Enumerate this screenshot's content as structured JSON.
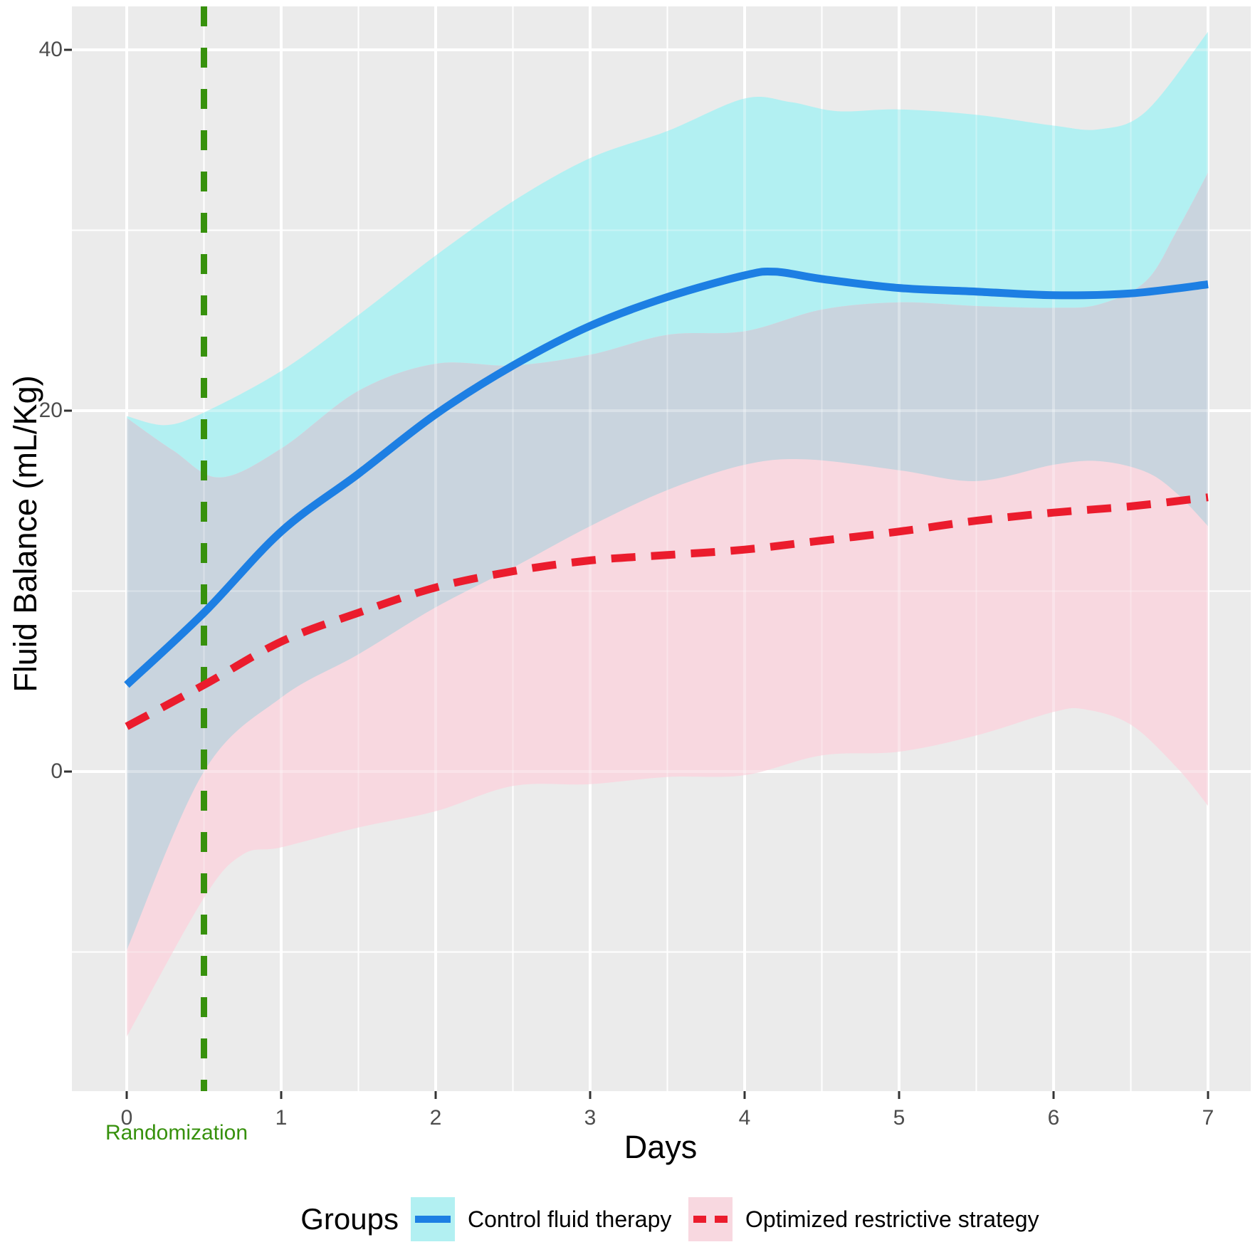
{
  "chart_data": {
    "type": "line",
    "title": "",
    "xlabel": "Days",
    "ylabel": "Fluid Balance (mL/Kg)",
    "x_ticks": [
      0,
      1,
      2,
      3,
      4,
      5,
      6,
      7
    ],
    "x_tick_labels": [
      "0",
      "1",
      "2",
      "3",
      "4",
      "5",
      "6",
      "7"
    ],
    "y_ticks": [
      0,
      20,
      40
    ],
    "y_tick_labels": [
      "0",
      "20",
      "40"
    ],
    "xlim": [
      -0.36,
      7.28
    ],
    "ylim": [
      -17.7,
      42.4
    ],
    "grid": true,
    "panel_bg": "#ebebeb",
    "grid_color": "#ffffff",
    "tick_text_color": "#4d4d4d",
    "overlap_fill": "#c9d4de",
    "annotation": {
      "label": "Randomization",
      "x": 0.5,
      "color": "#37910d",
      "line_style": "dashed"
    },
    "legend": {
      "title": "Groups",
      "position": "bottom",
      "entries": [
        {
          "label": "Control fluid therapy",
          "line_color": "#1d7fe3",
          "line_style": "solid",
          "band_fill": "#b2f0f2"
        },
        {
          "label": "Optimized restrictive strategy",
          "line_color": "#eb1c2d",
          "line_style": "dashed",
          "band_fill": "#f8d8e0"
        }
      ]
    },
    "series": [
      {
        "name": "Control fluid therapy",
        "color": "#1d7fe3",
        "dash": "solid",
        "points": [
          [
            0,
            4.8
          ],
          [
            0.5,
            8.8
          ],
          [
            1,
            13.3
          ],
          [
            1.5,
            16.5
          ],
          [
            2,
            19.8
          ],
          [
            2.5,
            22.5
          ],
          [
            3,
            24.7
          ],
          [
            3.5,
            26.3
          ],
          [
            4,
            27.5
          ],
          [
            4.2,
            27.7
          ],
          [
            4.5,
            27.3
          ],
          [
            5,
            26.8
          ],
          [
            5.5,
            26.6
          ],
          [
            6,
            26.4
          ],
          [
            6.5,
            26.5
          ],
          [
            7,
            27.0
          ]
        ],
        "band_upper": [
          [
            0,
            19.7
          ],
          [
            0.25,
            19.2
          ],
          [
            0.5,
            19.9
          ],
          [
            1,
            22.2
          ],
          [
            1.5,
            25.3
          ],
          [
            2,
            28.6
          ],
          [
            2.5,
            31.6
          ],
          [
            3,
            34.0
          ],
          [
            3.5,
            35.5
          ],
          [
            4,
            37.3
          ],
          [
            4.3,
            37.1
          ],
          [
            4.6,
            36.6
          ],
          [
            5,
            36.7
          ],
          [
            5.5,
            36.4
          ],
          [
            6,
            35.8
          ],
          [
            6.3,
            35.6
          ],
          [
            6.6,
            36.6
          ],
          [
            7,
            41.0
          ]
        ],
        "band_lower": [
          [
            0,
            -9.9
          ],
          [
            0.5,
            0.0
          ],
          [
            1,
            4.1
          ],
          [
            1.5,
            6.5
          ],
          [
            2,
            9.1
          ],
          [
            2.5,
            11.3
          ],
          [
            3,
            13.6
          ],
          [
            3.5,
            15.6
          ],
          [
            4,
            17.0
          ],
          [
            4.4,
            17.3
          ],
          [
            5,
            16.7
          ],
          [
            5.5,
            16.1
          ],
          [
            6,
            17.0
          ],
          [
            6.3,
            17.2
          ],
          [
            6.6,
            16.6
          ],
          [
            6.8,
            15.4
          ],
          [
            7,
            13.6
          ]
        ]
      },
      {
        "name": "Optimized restrictive strategy",
        "color": "#eb1c2d",
        "dash": "dashed",
        "points": [
          [
            0,
            2.5
          ],
          [
            0.5,
            4.8
          ],
          [
            1,
            7.2
          ],
          [
            1.5,
            8.8
          ],
          [
            2,
            10.2
          ],
          [
            2.5,
            11.1
          ],
          [
            3,
            11.7
          ],
          [
            3.5,
            12.0
          ],
          [
            4,
            12.3
          ],
          [
            4.5,
            12.8
          ],
          [
            5,
            13.3
          ],
          [
            5.5,
            13.9
          ],
          [
            6,
            14.35
          ],
          [
            6.5,
            14.7
          ],
          [
            7,
            15.2
          ]
        ],
        "band_upper": [
          [
            0,
            19.6
          ],
          [
            0.3,
            17.8
          ],
          [
            0.6,
            16.3
          ],
          [
            1,
            17.9
          ],
          [
            1.5,
            21.1
          ],
          [
            2,
            22.6
          ],
          [
            2.5,
            22.5
          ],
          [
            3,
            23.1
          ],
          [
            3.5,
            24.2
          ],
          [
            4,
            24.4
          ],
          [
            4.5,
            25.6
          ],
          [
            5,
            26.0
          ],
          [
            5.5,
            25.8
          ],
          [
            6,
            25.7
          ],
          [
            6.3,
            25.9
          ],
          [
            6.6,
            27.2
          ],
          [
            6.8,
            30.0
          ],
          [
            7,
            33.2
          ]
        ],
        "band_lower": [
          [
            0,
            -14.7
          ],
          [
            0.5,
            -7.0
          ],
          [
            0.75,
            -4.6
          ],
          [
            1,
            -4.2
          ],
          [
            1.5,
            -3.1
          ],
          [
            2,
            -2.2
          ],
          [
            2.5,
            -0.8
          ],
          [
            3,
            -0.7
          ],
          [
            3.5,
            -0.3
          ],
          [
            4,
            -0.2
          ],
          [
            4.5,
            0.9
          ],
          [
            5,
            1.1
          ],
          [
            5.5,
            2.0
          ],
          [
            6,
            3.3
          ],
          [
            6.2,
            3.45
          ],
          [
            6.5,
            2.6
          ],
          [
            6.8,
            0.2
          ],
          [
            7,
            -1.9
          ]
        ]
      }
    ]
  }
}
